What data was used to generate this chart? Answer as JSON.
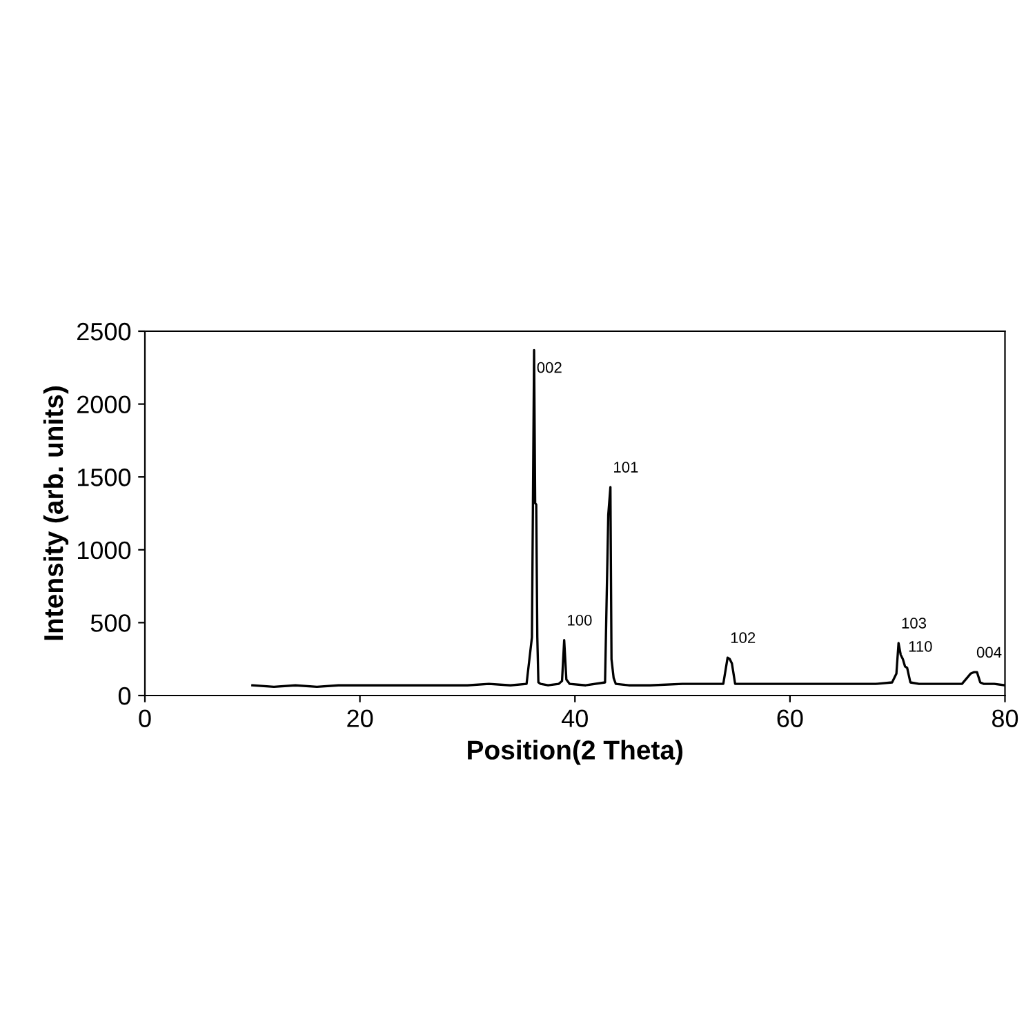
{
  "chart_data": {
    "type": "line",
    "xlabel": "Position(2 Theta)",
    "ylabel": "Intensity (arb. units)",
    "xlim": [
      0,
      80
    ],
    "xticks": [
      0,
      20,
      40,
      60,
      80
    ],
    "ylim": [
      0,
      2500
    ],
    "yticks": [
      0,
      500,
      1000,
      1500,
      2000,
      2500
    ],
    "grid": false,
    "legend": false,
    "marker": "none",
    "line_style": "solid",
    "series": [
      {
        "color": "#000000",
        "x": [
          10,
          12,
          14,
          16,
          18,
          20,
          22,
          24,
          26,
          28,
          30,
          32,
          34,
          35.5,
          36.0,
          36.2,
          36.3,
          36.4,
          36.5,
          36.6,
          36.8,
          37.5,
          38.5,
          38.8,
          39.0,
          39.2,
          39.5,
          41,
          42.8,
          43.1,
          43.3,
          43.4,
          43.6,
          43.8,
          45,
          47,
          50,
          52,
          53.8,
          54.2,
          54.4,
          54.6,
          54.9,
          56,
          58,
          60,
          62,
          64,
          66,
          68,
          69.5,
          69.9,
          70.1,
          70.3,
          70.5,
          70.7,
          70.9,
          71.2,
          72,
          74,
          76,
          76.8,
          77.1,
          77.4,
          77.7,
          78,
          79,
          80
        ],
        "values": [
          70,
          60,
          70,
          60,
          70,
          70,
          70,
          70,
          70,
          70,
          70,
          80,
          70,
          80,
          400,
          2370,
          1320,
          1310,
          400,
          90,
          80,
          70,
          80,
          100,
          380,
          110,
          80,
          70,
          90,
          1240,
          1430,
          250,
          120,
          80,
          70,
          70,
          80,
          80,
          80,
          260,
          250,
          220,
          80,
          80,
          80,
          80,
          80,
          80,
          80,
          80,
          90,
          150,
          360,
          280,
          250,
          200,
          190,
          90,
          80,
          80,
          80,
          150,
          160,
          160,
          90,
          80,
          80,
          70
        ]
      }
    ],
    "annotations": [
      {
        "text": "002",
        "x": 36.2,
        "y": 2370
      },
      {
        "text": "101",
        "x": 43.3,
        "y": 1430
      },
      {
        "text": "100",
        "x": 39.0,
        "y": 380
      },
      {
        "text": "102",
        "x": 54.2,
        "y": 260
      },
      {
        "text": "103",
        "x": 70.1,
        "y": 360
      },
      {
        "text": "110",
        "x": 70.7,
        "y": 200
      },
      {
        "text": "004",
        "x": 77.1,
        "y": 160
      }
    ]
  }
}
